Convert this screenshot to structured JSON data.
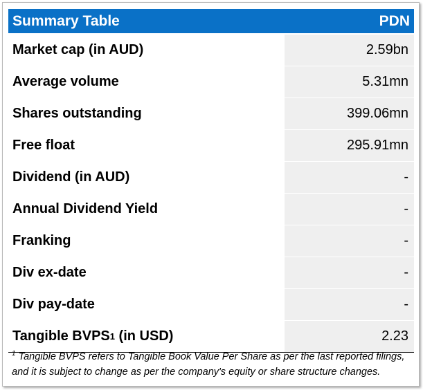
{
  "header": {
    "title": "Summary Table",
    "ticker": "PDN"
  },
  "rows": [
    {
      "label": "Market cap (in AUD)",
      "value": "2.59bn"
    },
    {
      "label": "Average volume",
      "value": "5.31mn"
    },
    {
      "label": "Shares outstanding",
      "value": "399.06mn"
    },
    {
      "label": "Free float",
      "value": "295.91mn"
    },
    {
      "label": "Dividend (in AUD)",
      "value": "-"
    },
    {
      "label": "Annual Dividend Yield",
      "value": "-"
    },
    {
      "label": "Franking",
      "value": "-"
    },
    {
      "label": "Div ex-date",
      "value": "-"
    },
    {
      "label": "Div pay-date",
      "value": "-"
    },
    {
      "label": "Tangible BVPS",
      "label_sup": "1",
      "label_suffix": " (in USD)",
      "value": "2.23"
    }
  ],
  "footnote": {
    "marker": "1",
    "line1": " Tangible BVPS refers to Tangible Book Value Per Share as per the last reported filings,",
    "line2": "and it is subject to change as per the company's equity or share structure changes."
  },
  "colors": {
    "header_bg": "#0a71c7",
    "value_bg": "#efefef"
  }
}
